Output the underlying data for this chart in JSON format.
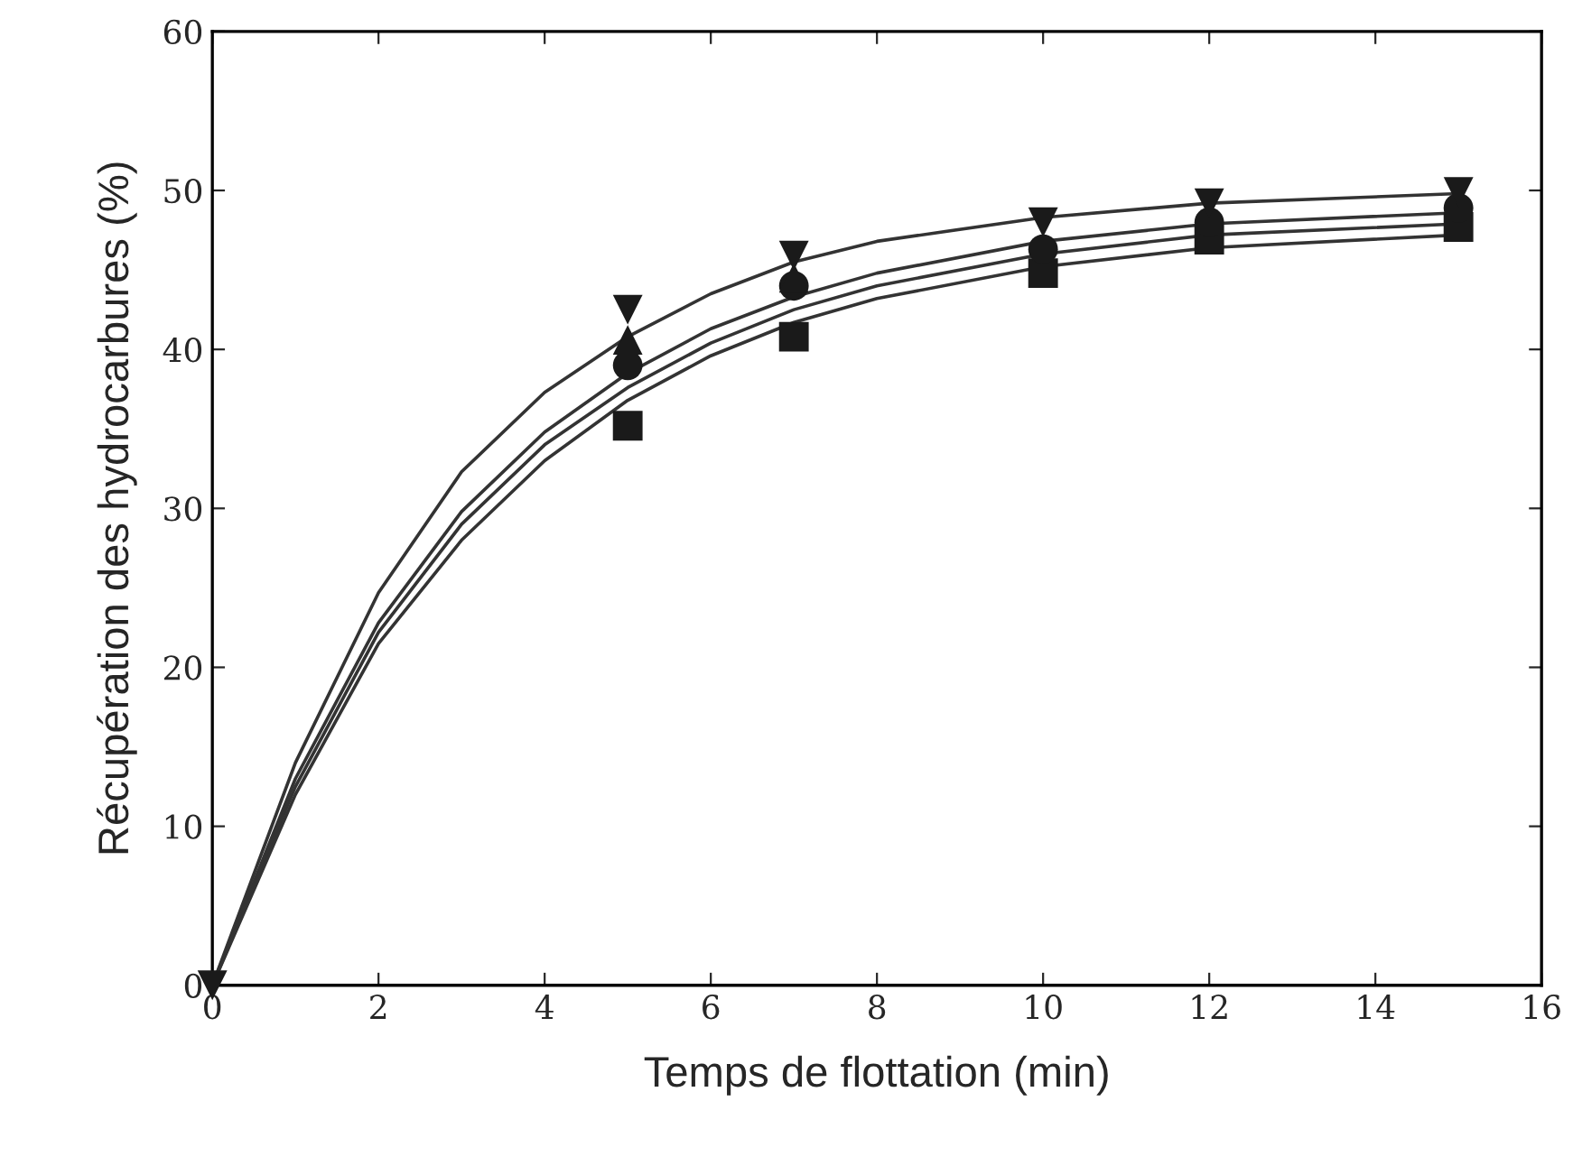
{
  "chart_data": {
    "type": "scatter",
    "xlabel": "Temps de flottation (min)",
    "ylabel": "Récupération des hydrocarbures (%)",
    "xlim": [
      0,
      16
    ],
    "xticks": [
      0,
      2,
      4,
      6,
      8,
      10,
      12,
      14,
      16
    ],
    "ylim": [
      0,
      60
    ],
    "yticks": [
      0,
      10,
      20,
      30,
      40,
      50,
      60
    ],
    "grid": false,
    "legend": false,
    "series": [
      {
        "type": "line",
        "color": "#333333",
        "marker": "none",
        "line_style": "solid",
        "x": [
          0,
          1,
          2,
          3,
          4,
          5,
          6,
          7,
          8,
          10,
          12,
          15
        ],
        "values": [
          0,
          14,
          24.7,
          32.3,
          37.3,
          40.8,
          43.5,
          45.5,
          46.8,
          48.3,
          49.2,
          49.8
        ]
      },
      {
        "type": "line",
        "color": "#333333",
        "marker": "none",
        "line_style": "solid",
        "x": [
          0,
          1,
          2,
          3,
          4,
          5,
          6,
          7,
          8,
          10,
          12,
          15
        ],
        "values": [
          0,
          13,
          22.8,
          29.8,
          34.8,
          38.5,
          41.3,
          43.3,
          44.8,
          46.8,
          47.9,
          48.6
        ]
      },
      {
        "type": "line",
        "color": "#333333",
        "marker": "none",
        "line_style": "solid",
        "x": [
          0,
          1,
          2,
          3,
          4,
          5,
          6,
          7,
          8,
          10,
          12,
          15
        ],
        "values": [
          0,
          12.5,
          22.2,
          29,
          34,
          37.6,
          40.4,
          42.5,
          44,
          46,
          47.2,
          47.9
        ]
      },
      {
        "type": "line",
        "color": "#333333",
        "marker": "none",
        "line_style": "solid",
        "x": [
          0,
          1,
          2,
          3,
          4,
          5,
          6,
          7,
          8,
          10,
          12,
          15
        ],
        "values": [
          0,
          12,
          21.5,
          28,
          33,
          36.8,
          39.6,
          41.7,
          43.2,
          45.2,
          46.4,
          47.2
        ]
      },
      {
        "color": "#1a1a1a",
        "marker": "square",
        "x": [
          5,
          7,
          10,
          12,
          15
        ],
        "values": [
          35.2,
          40.8,
          44.8,
          46.9,
          47.7
        ]
      },
      {
        "color": "#1a1a1a",
        "marker": "circle",
        "x": [
          5,
          7,
          10,
          12,
          15
        ],
        "values": [
          39,
          44,
          46.3,
          48,
          48.9
        ]
      },
      {
        "color": "#1a1a1a",
        "marker": "triangle",
        "x": [
          5,
          7
        ],
        "values": [
          40.6,
          44.5
        ]
      },
      {
        "color": "#1a1a1a",
        "marker": "triangle_down",
        "x": [
          0,
          5,
          7,
          10,
          12,
          15
        ],
        "values": [
          0,
          42.5,
          45.9,
          48,
          49.2,
          49.9
        ]
      }
    ]
  }
}
